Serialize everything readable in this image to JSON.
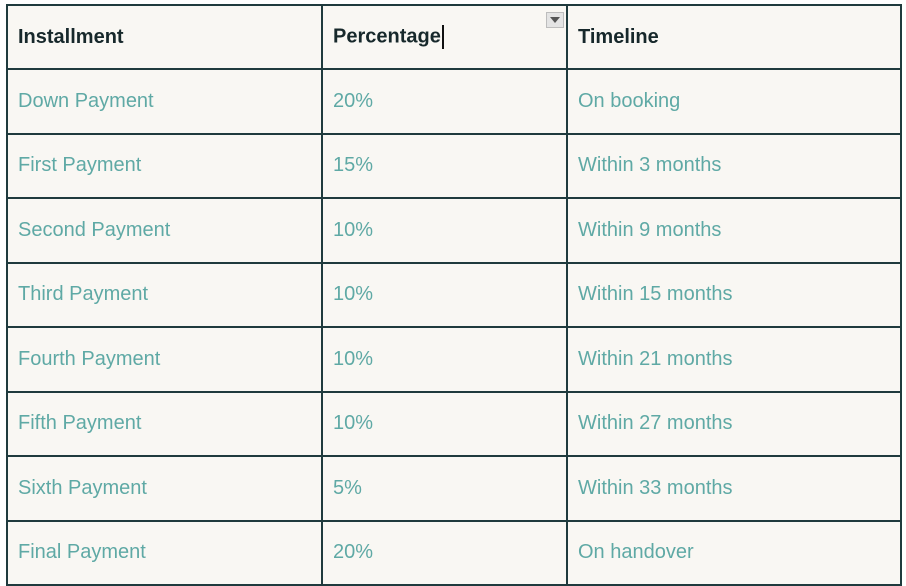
{
  "table": {
    "headers": [
      "Installment",
      "Percentage",
      "Timeline"
    ],
    "rows": [
      [
        "Down Payment",
        "20%",
        "On booking"
      ],
      [
        "First Payment",
        "15%",
        "Within 3 months"
      ],
      [
        "Second Payment",
        "10%",
        "Within 9 months"
      ],
      [
        "Third Payment",
        "10%",
        "Within 15 months"
      ],
      [
        "Fourth Payment",
        "10%",
        "Within 21 months"
      ],
      [
        "Fifth Payment",
        "10%",
        "Within 27 months"
      ],
      [
        "Sixth Payment",
        "5%",
        "Within 33 months"
      ],
      [
        "Final Payment",
        "20%",
        "On handover"
      ]
    ]
  },
  "icons": {
    "filter": "dropdown-arrow-icon"
  },
  "colors": {
    "border": "#1f3a3d",
    "header_text": "#17282b",
    "cell_text": "#5fa9a5",
    "background": "#f9f7f3"
  }
}
